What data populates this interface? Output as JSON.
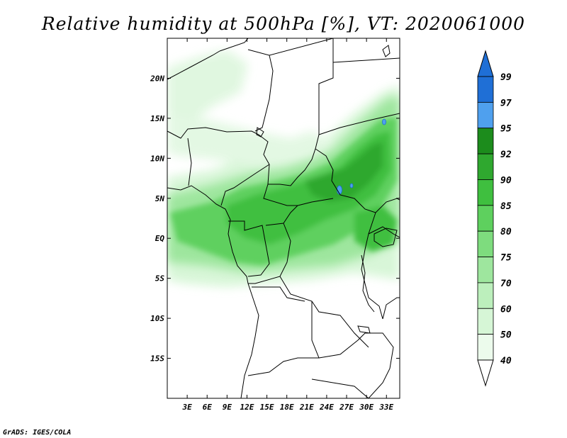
{
  "title": "Relative humidity at 500hPa [%], VT: 2020061000",
  "credit": "GrADS: IGES/COLA",
  "map": {
    "lon_range": [
      0,
      35
    ],
    "lat_range": [
      -20,
      25
    ],
    "lat_ticks": [
      {
        "lat": 20,
        "label": "20N"
      },
      {
        "lat": 15,
        "label": "15N"
      },
      {
        "lat": 10,
        "label": "10N"
      },
      {
        "lat": 5,
        "label": "5N"
      },
      {
        "lat": 0,
        "label": "EQ"
      },
      {
        "lat": -5,
        "label": "5S"
      },
      {
        "lat": -10,
        "label": "10S"
      },
      {
        "lat": -15,
        "label": "15S"
      }
    ],
    "lon_ticks": [
      {
        "lon": 3,
        "label": "3E"
      },
      {
        "lon": 6,
        "label": "6E"
      },
      {
        "lon": 9,
        "label": "9E"
      },
      {
        "lon": 12,
        "label": "12E"
      },
      {
        "lon": 15,
        "label": "15E"
      },
      {
        "lon": 18,
        "label": "18E"
      },
      {
        "lon": 21,
        "label": "21E"
      },
      {
        "lon": 24,
        "label": "24E"
      },
      {
        "lon": 27,
        "label": "27E"
      },
      {
        "lon": 30,
        "label": "30E"
      },
      {
        "lon": 33,
        "label": "33E"
      }
    ]
  },
  "colorbar": {
    "levels": [
      {
        "label": "99",
        "color": "#1f6fd6"
      },
      {
        "label": "97",
        "color": "#1f6fd6"
      },
      {
        "label": "95",
        "color": "#4fa0ee"
      },
      {
        "label": "92",
        "color": "#1c8c1c"
      },
      {
        "label": "90",
        "color": "#2fa82f"
      },
      {
        "label": "85",
        "color": "#3fbf3f"
      },
      {
        "label": "80",
        "color": "#5ed05e"
      },
      {
        "label": "75",
        "color": "#7edc7e"
      },
      {
        "label": "70",
        "color": "#9ee69e"
      },
      {
        "label": "60",
        "color": "#bcefbc"
      },
      {
        "label": "50",
        "color": "#d6f6d6"
      },
      {
        "label": "40",
        "color": "#ecfbec"
      }
    ],
    "top_arrow_color": "#1f6fd6",
    "bottom_arrow_color": "#ffffff"
  }
}
